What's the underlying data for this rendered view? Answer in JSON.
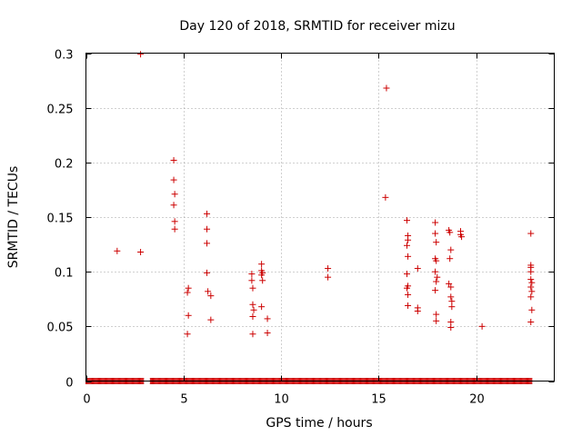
{
  "chart_data": {
    "type": "scatter",
    "title": "Day 120 of 2018, SRMTID for receiver mizu",
    "xlabel": "GPS time / hours",
    "ylabel": "SRMTID / TECUs",
    "xlim": [
      0,
      24
    ],
    "ylim": [
      0,
      0.3
    ],
    "x_ticks": [
      0,
      5,
      10,
      15,
      20
    ],
    "y_ticks": [
      0,
      0.05,
      0.1,
      0.15,
      0.2,
      0.25,
      0.3
    ],
    "x_tick_labels": [
      "0",
      "5",
      "10",
      "15",
      "20"
    ],
    "y_tick_labels": [
      "0",
      "0.05",
      "0.1",
      "0.15",
      "0.2",
      "0.25",
      "0.3"
    ],
    "grid": true,
    "marker": "+",
    "series": [
      {
        "name": "SRMTID",
        "color": "#cc0000",
        "points": [
          [
            1.6,
            0.119
          ],
          [
            2.8,
            0.299
          ],
          [
            2.8,
            0.118
          ],
          [
            4.5,
            0.202
          ],
          [
            4.5,
            0.184
          ],
          [
            4.55,
            0.171
          ],
          [
            4.5,
            0.161
          ],
          [
            4.55,
            0.146
          ],
          [
            4.55,
            0.139
          ],
          [
            5.2,
            0.081
          ],
          [
            5.25,
            0.085
          ],
          [
            5.25,
            0.06
          ],
          [
            5.2,
            0.043
          ],
          [
            6.2,
            0.153
          ],
          [
            6.2,
            0.139
          ],
          [
            6.2,
            0.126
          ],
          [
            6.2,
            0.099
          ],
          [
            6.25,
            0.082
          ],
          [
            6.4,
            0.078
          ],
          [
            6.4,
            0.056
          ],
          [
            8.5,
            0.098
          ],
          [
            8.5,
            0.092
          ],
          [
            8.55,
            0.085
          ],
          [
            8.55,
            0.07
          ],
          [
            8.6,
            0.065
          ],
          [
            8.55,
            0.059
          ],
          [
            8.55,
            0.043
          ],
          [
            9.0,
            0.107
          ],
          [
            9.0,
            0.101
          ],
          [
            9.05,
            0.099
          ],
          [
            9.0,
            0.097
          ],
          [
            9.05,
            0.092
          ],
          [
            9.0,
            0.068
          ],
          [
            9.3,
            0.057
          ],
          [
            9.3,
            0.044
          ],
          [
            12.4,
            0.103
          ],
          [
            12.4,
            0.095
          ],
          [
            15.4,
            0.268
          ],
          [
            15.35,
            0.168
          ],
          [
            16.45,
            0.147
          ],
          [
            16.5,
            0.133
          ],
          [
            16.5,
            0.129
          ],
          [
            16.45,
            0.124
          ],
          [
            16.5,
            0.114
          ],
          [
            16.45,
            0.098
          ],
          [
            16.5,
            0.087
          ],
          [
            16.45,
            0.085
          ],
          [
            16.5,
            0.079
          ],
          [
            16.5,
            0.069
          ],
          [
            17.0,
            0.103
          ],
          [
            17.0,
            0.067
          ],
          [
            17.0,
            0.064
          ],
          [
            17.9,
            0.145
          ],
          [
            17.9,
            0.135
          ],
          [
            17.95,
            0.127
          ],
          [
            17.9,
            0.112
          ],
          [
            17.95,
            0.11
          ],
          [
            17.9,
            0.1
          ],
          [
            18.0,
            0.095
          ],
          [
            17.95,
            0.091
          ],
          [
            17.9,
            0.083
          ],
          [
            17.95,
            0.061
          ],
          [
            17.95,
            0.055
          ],
          [
            18.6,
            0.138
          ],
          [
            18.65,
            0.136
          ],
          [
            18.7,
            0.12
          ],
          [
            18.65,
            0.112
          ],
          [
            18.6,
            0.089
          ],
          [
            18.7,
            0.086
          ],
          [
            18.7,
            0.077
          ],
          [
            18.75,
            0.073
          ],
          [
            18.75,
            0.068
          ],
          [
            18.7,
            0.054
          ],
          [
            18.7,
            0.049
          ],
          [
            19.2,
            0.137
          ],
          [
            19.2,
            0.134
          ],
          [
            19.25,
            0.132
          ],
          [
            20.3,
            0.05
          ],
          [
            22.8,
            0.135
          ],
          [
            22.8,
            0.106
          ],
          [
            22.8,
            0.104
          ],
          [
            22.8,
            0.1
          ],
          [
            22.8,
            0.093
          ],
          [
            22.85,
            0.09
          ],
          [
            22.8,
            0.086
          ],
          [
            22.85,
            0.082
          ],
          [
            22.8,
            0.077
          ],
          [
            22.85,
            0.065
          ],
          [
            22.8,
            0.054
          ]
        ],
        "zero_segments": [
          [
            0,
            2.95
          ],
          [
            3.3,
            22.85
          ]
        ]
      }
    ]
  }
}
